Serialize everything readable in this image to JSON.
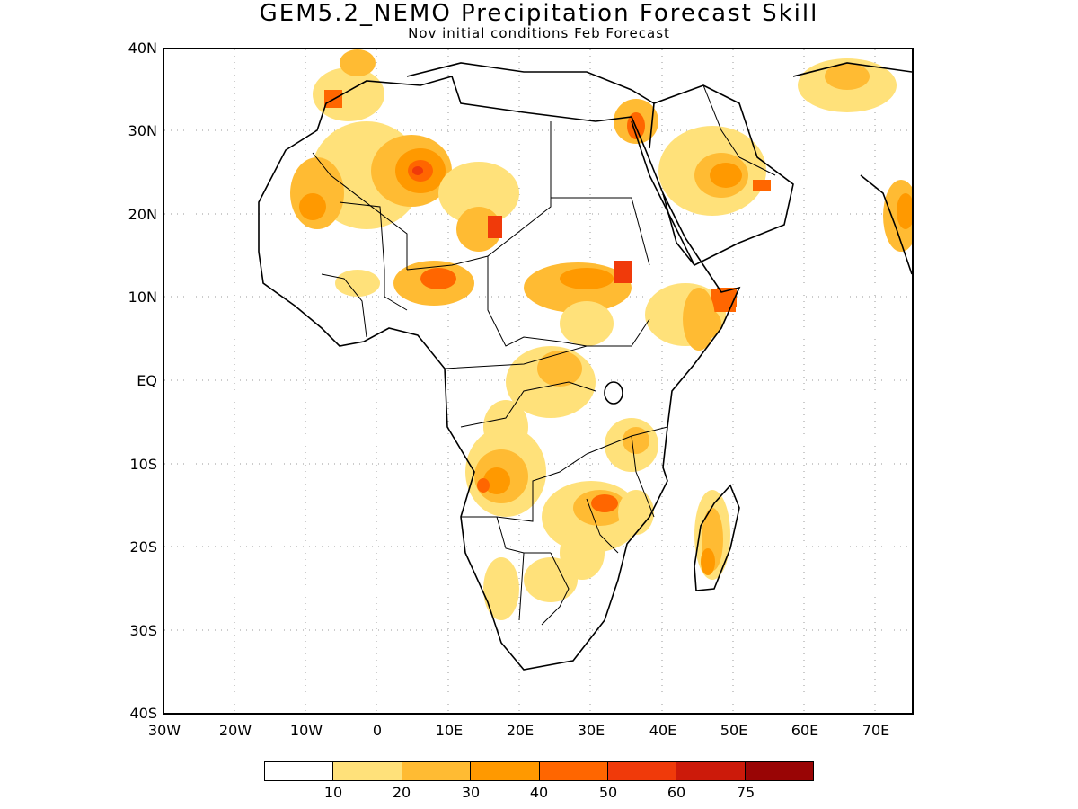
{
  "title": "GEM5.2_NEMO Precipitation Forecast Skill",
  "subtitle": "Nov initial conditions  Feb Forecast",
  "lat_labels": [
    "40N",
    "30N",
    "20N",
    "10N",
    "EQ",
    "10S",
    "20S",
    "30S",
    "40S"
  ],
  "lon_labels": [
    "30W",
    "20W",
    "10W",
    "0",
    "10E",
    "20E",
    "30E",
    "40E",
    "50E",
    "60E",
    "70E"
  ],
  "colorbar": {
    "colors": [
      "#ffffff",
      "#ffe17a",
      "#ffbb33",
      "#ff9900",
      "#ff6600",
      "#f03a0a",
      "#cc1a0a",
      "#990505"
    ],
    "labels": [
      "10",
      "20",
      "30",
      "40",
      "50",
      "60",
      "75"
    ]
  },
  "colors": {
    "land_outline": "#000000",
    "grid": "#888888"
  }
}
